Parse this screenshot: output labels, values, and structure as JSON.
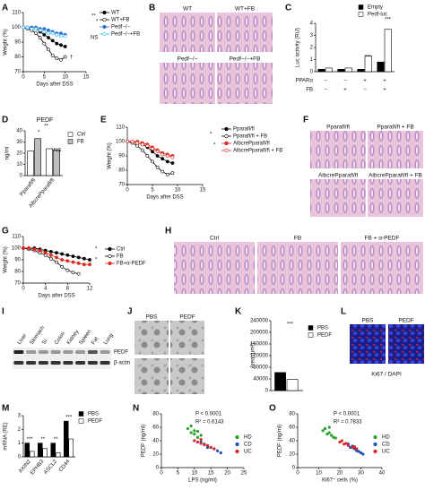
{
  "panels": [
    {
      "label": "A",
      "chart_data": {
        "type": "line",
        "ylabel": "Weight (%)",
        "xlabel": "Days after DSS",
        "x": [
          0,
          1,
          2,
          3,
          4,
          5,
          6,
          7,
          8,
          9,
          10
        ],
        "xlim": [
          0,
          15
        ],
        "xticks": [
          0,
          5,
          10,
          15
        ],
        "ylim": [
          70,
          110
        ],
        "yticks": [
          70,
          80,
          90,
          100,
          110
        ],
        "series": [
          {
            "name": "WT",
            "color": "#000000",
            "filled": true,
            "values": [
              100,
              100,
              99,
              99,
              97,
              95,
              93,
              91,
              89,
              88,
              87
            ]
          },
          {
            "name": "WT+FB",
            "color": "#000000",
            "filled": false,
            "values": [
              100,
              99,
              98,
              96,
              93,
              89,
              85,
              81,
              79,
              78,
              80
            ]
          },
          {
            "name": "Pedf−/−",
            "color": "#2f6fd0",
            "filled": true,
            "values": [
              100,
              100,
              100,
              100,
              99,
              99,
              98,
              97,
              96,
              96,
              95
            ]
          },
          {
            "name": "Pedf−/−+FB",
            "color": "#29b6e8",
            "filled": false,
            "values": [
              100,
              100,
              99,
              99,
              98,
              97,
              96,
              96,
              95,
              94,
              94
            ]
          }
        ],
        "annotations": [
          "**",
          "*",
          "NS",
          "†"
        ]
      }
    },
    {
      "label": "B",
      "chart_data": {
        "type": "image",
        "captions": [
          "WT",
          "WT+FB",
          "Pedf−/−",
          "Pedf−/−+FB"
        ]
      }
    },
    {
      "label": "C",
      "chart_data": {
        "type": "bar",
        "ylabel": "Luc activity (RU)",
        "categories": [
          null,
          null,
          null,
          null
        ],
        "ylim": [
          0,
          4
        ],
        "yticks": [
          0,
          1,
          2,
          3,
          4
        ],
        "series": [
          {
            "name": "Empty",
            "color": "#000000",
            "values": [
              0.2,
              0.2,
              0.2,
              0.8
            ]
          },
          {
            "name": "Pedf-luc",
            "color": "#ffffff",
            "values": [
              0.3,
              0.3,
              1.3,
              3.5
            ]
          }
        ],
        "rows": [
          {
            "name": "PPARα",
            "signs": [
              "−",
              "−",
              "+",
              "+"
            ]
          },
          {
            "name": "FB",
            "signs": [
              "−",
              "+",
              "−",
              "+"
            ]
          }
        ],
        "annotations": [
          "***",
          "***"
        ]
      }
    },
    {
      "label": "D",
      "chart_data": {
        "type": "bar",
        "title": "PEDF",
        "ylabel": "ng/ml",
        "categories": [
          "Pparafl/fl",
          "AlbcrePparafl/fl"
        ],
        "ylim": [
          0,
          40
        ],
        "yticks": [
          0,
          10,
          20,
          30,
          40
        ],
        "series": [
          {
            "name": "Ctrl",
            "color": "#ffffff",
            "values": [
              22,
              24
            ]
          },
          {
            "name": "FB",
            "color": "#bdbdbd",
            "values": [
              33,
              23
            ]
          }
        ],
        "annotations": [
          "*",
          "**",
          "NS"
        ]
      }
    },
    {
      "label": "E",
      "chart_data": {
        "type": "line",
        "ylabel": "Weight (%)",
        "xlabel": "Days after DSS",
        "x": [
          0,
          1,
          2,
          3,
          4,
          5,
          6,
          7,
          8,
          9
        ],
        "xlim": [
          0,
          15
        ],
        "xticks": [
          0,
          5,
          10,
          15
        ],
        "ylim": [
          70,
          110
        ],
        "yticks": [
          70,
          80,
          90,
          100,
          110
        ],
        "series": [
          {
            "name": "Pparafl/fl",
            "color": "#000000",
            "filled": true,
            "values": [
              100,
              100,
              99,
              98,
              96,
              93,
              90,
              88,
              86,
              85
            ]
          },
          {
            "name": "Pparafl/fl + FB",
            "color": "#000000",
            "filled": false,
            "values": [
              100,
              99,
              97,
              94,
              90,
              86,
              82,
              79,
              77,
              78
            ]
          },
          {
            "name": "AlbcrePparafl/fl",
            "color": "#e0281e",
            "filled": true,
            "values": [
              100,
              100,
              100,
              99,
              98,
              96,
              94,
              92,
              91,
              90
            ]
          },
          {
            "name": "AlbcrePparafl/fl + FB",
            "color": "#e0281e",
            "filled": false,
            "values": [
              100,
              100,
              99,
              98,
              97,
              95,
              93,
              91,
              90,
              89
            ]
          }
        ],
        "annotations": [
          "*",
          "*"
        ]
      }
    },
    {
      "label": "F",
      "chart_data": {
        "type": "image",
        "captions": [
          "Pparafl/fl",
          "Pparafl/fl + FB",
          "AlbcrePparafl/fl",
          "AlbcrePparafl/fl + FB"
        ]
      }
    },
    {
      "label": "G",
      "chart_data": {
        "type": "line",
        "ylabel": "Weight (%)",
        "xlabel": "Days after DSS",
        "x": [
          0,
          1,
          2,
          3,
          4,
          5,
          6,
          7,
          8,
          9,
          10,
          11,
          12
        ],
        "xlim": [
          0,
          12
        ],
        "xticks": [
          0,
          4,
          8,
          12
        ],
        "ylim": [
          70,
          110
        ],
        "yticks": [
          70,
          80,
          90,
          100,
          110
        ],
        "series": [
          {
            "name": "Ctrl",
            "color": "#000000",
            "filled": true,
            "values": [
              100,
              100,
              100,
              99,
              98,
              97,
              96,
              95,
              94,
              93,
              92,
              91,
              90
            ]
          },
          {
            "name": "FB",
            "color": "#000000",
            "filled": false,
            "values": [
              100,
              99,
              98,
              96,
              94,
              91,
              88,
              84,
              81,
              79,
              78,
              null,
              null
            ]
          },
          {
            "name": "FB+α-PEDF",
            "color": "#e0281e",
            "filled": true,
            "values": [
              100,
              100,
              99,
              98,
              96,
              94,
              92,
              90,
              89,
              88,
              87,
              86,
              86
            ]
          }
        ],
        "annotations": [
          "*",
          "*"
        ]
      }
    },
    {
      "label": "H",
      "chart_data": {
        "type": "image",
        "captions": [
          "Ctrl",
          "FB",
          "FB + α-PEDF"
        ]
      }
    },
    {
      "label": "I",
      "chart_data": {
        "type": "blot",
        "lanes": [
          "Liver",
          "Stomach",
          "SI",
          "Colon",
          "Kidney",
          "Spleen",
          "Fat",
          "Lung"
        ],
        "bands": [
          "PEDF",
          "β-actin"
        ]
      }
    },
    {
      "label": "J",
      "chart_data": {
        "type": "image",
        "captions": [
          "PBS",
          "PEDF"
        ]
      }
    },
    {
      "label": "K",
      "chart_data": {
        "type": "bar",
        "ylabel": "Area (μm²)",
        "categories": [
          null
        ],
        "ylim": [
          0,
          240000
        ],
        "yticks": [
          0,
          40000,
          80000,
          120000,
          160000,
          200000,
          240000
        ],
        "series": [
          {
            "name": "PBS",
            "color": "#000000",
            "values": [
              62000
            ]
          },
          {
            "name": "PEDF",
            "color": "#ffffff",
            "values": [
              38000
            ]
          }
        ],
        "annotations": [
          "***"
        ]
      }
    },
    {
      "label": "L",
      "chart_data": {
        "type": "image",
        "captions": [
          "PBS",
          "PEDF"
        ],
        "footer": "Ki67 / DAPI"
      }
    },
    {
      "label": "M",
      "chart_data": {
        "type": "bar",
        "ylabel": "mRNA (RE)",
        "categories": [
          "AXIN2",
          "EPHB3",
          "ASCL2",
          "CD44"
        ],
        "ylim": [
          0,
          3
        ],
        "yticks": [
          0,
          1,
          2,
          3
        ],
        "series": [
          {
            "name": "PBS",
            "color": "#000000",
            "values": [
              1,
              1,
              1,
              2.6
            ]
          },
          {
            "name": "PEDF",
            "color": "#ffffff",
            "values": [
              0.4,
              0.6,
              0.3,
              1.3
            ]
          }
        ],
        "annotations": [
          "***",
          "**",
          "**",
          "***"
        ]
      }
    },
    {
      "label": "N",
      "chart_data": {
        "type": "scatter",
        "ylabel": "PEDF (ng/ml)",
        "xlabel": "LPS (ng/ml)",
        "xlim": [
          0,
          25
        ],
        "xticks": [
          0,
          5,
          10,
          15,
          20,
          25
        ],
        "ylim": [
          0,
          80
        ],
        "yticks": [
          0,
          20,
          40,
          60,
          80
        ],
        "series": [
          {
            "name": "HD",
            "color": "#2ca02c",
            "x": [
              8,
              9,
              10,
              10,
              11,
              12,
              9,
              11
            ],
            "values": [
              58,
              62,
              55,
              50,
              54,
              48,
              52,
              45
            ]
          },
          {
            "name": "CD",
            "color": "#1f4fbf",
            "x": [
              12,
              14,
              15,
              16,
              13,
              17,
              18,
              14
            ],
            "values": [
              38,
              32,
              30,
              28,
              35,
              25,
              22,
              30
            ]
          },
          {
            "name": "UC",
            "color": "#d62728",
            "x": [
              10,
              12,
              13,
              15,
              11,
              14,
              16,
              12
            ],
            "values": [
              40,
              36,
              34,
              30,
              38,
              33,
              28,
              42
            ]
          }
        ],
        "annotations": [
          "P < 0.0001",
          "R² = 0.6143"
        ]
      }
    },
    {
      "label": "O",
      "chart_data": {
        "type": "scatter",
        "ylabel": "PEDF (ng/ml)",
        "xlabel": "Ki67⁺ cells (%)",
        "xlim": [
          0,
          40
        ],
        "xticks": [
          0,
          10,
          20,
          30,
          40
        ],
        "ylim": [
          0,
          80
        ],
        "yticks": [
          0,
          20,
          40,
          60,
          80
        ],
        "series": [
          {
            "name": "HD",
            "color": "#2ca02c",
            "x": [
              12,
              14,
              15,
              16,
              13,
              17,
              18,
              15
            ],
            "values": [
              55,
              50,
              52,
              48,
              58,
              45,
              44,
              60
            ]
          },
          {
            "name": "CD",
            "color": "#1f4fbf",
            "x": [
              25,
              27,
              28,
              30,
              26,
              29,
              31,
              24
            ],
            "values": [
              30,
              28,
              25,
              22,
              32,
              24,
              20,
              35
            ]
          },
          {
            "name": "UC",
            "color": "#d62728",
            "x": [
              20,
              22,
              24,
              26,
              23,
              28,
              21,
              27
            ],
            "values": [
              38,
              35,
              33,
              30,
              36,
              28,
              40,
              31
            ]
          }
        ],
        "annotations": [
          "P < 0.0001",
          "R² = 0.7833"
        ]
      }
    }
  ]
}
